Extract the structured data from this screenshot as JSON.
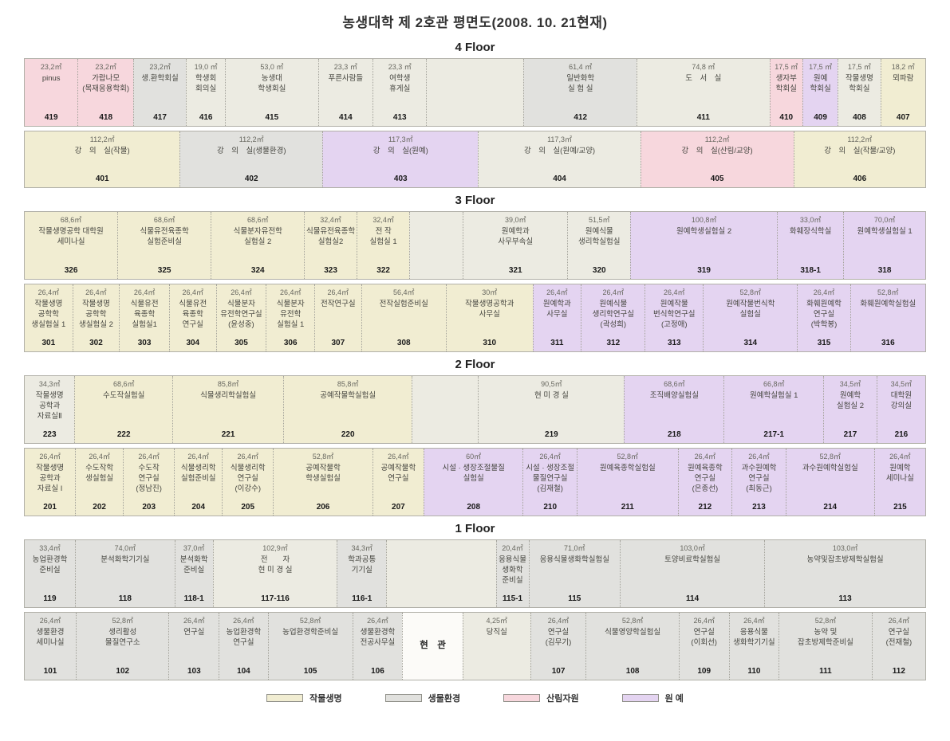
{
  "title": "농생대학 제 2호관 평면도(2008. 10. 21현재)",
  "colors": {
    "crop": "#f1edd2",
    "bio": "#e1e1de",
    "forest": "#f7d7dd",
    "horti": "#e4d4f1",
    "default": "#ecebe2"
  },
  "legend": [
    {
      "label": "작물생명",
      "type": "crop"
    },
    {
      "label": "생물환경",
      "type": "bio"
    },
    {
      "label": "산림자원",
      "type": "forest"
    },
    {
      "label": "원 예",
      "type": "horti"
    }
  ],
  "floors": [
    {
      "label": "4 Floor",
      "rows": [
        {
          "cells": [
            {
              "num": "419",
              "area": "23,2㎡",
              "name": "pinus",
              "type": "forest",
              "w": 5.9
            },
            {
              "num": "418",
              "area": "23,2㎡",
              "name": "가랍나모\n(목재응용학회)",
              "type": "forest",
              "w": 6.1
            },
            {
              "num": "417",
              "area": "23,2㎡",
              "name": "생.환학회실",
              "type": "bio",
              "w": 5.8
            },
            {
              "num": "416",
              "area": "19,0 ㎡",
              "name": "학생회\n회의실",
              "type": "none",
              "w": 4.2
            },
            {
              "num": "415",
              "area": "53,0 ㎡",
              "name": "농생대\n학생회실",
              "type": "none",
              "w": 10.4
            },
            {
              "num": "414",
              "area": "23,3 ㎡",
              "name": "푸른사람들",
              "type": "none",
              "w": 6.0
            },
            {
              "num": "413",
              "area": "23,3 ㎡",
              "name": "여학생\n휴게실",
              "type": "none",
              "w": 5.9
            },
            {
              "num": "",
              "area": "",
              "name": "",
              "type": "none",
              "w": 10.9
            },
            {
              "num": "412",
              "area": "61,4 ㎡",
              "name": "일반화학\n실 험 실",
              "type": "bio",
              "w": 12.7
            },
            {
              "num": "411",
              "area": "74,8 ㎡",
              "name": "도　서　실",
              "type": "none",
              "w": 15.0
            },
            {
              "num": "410",
              "area": "17,5 ㎡",
              "name": "생자부\n학회실",
              "type": "forest",
              "w": 3.5
            },
            {
              "num": "409",
              "area": "17,5 ㎡",
              "name": "원예\n학회실",
              "type": "horti",
              "w": 3.8
            },
            {
              "num": "408",
              "area": "17,5 ㎡",
              "name": "작물생명\n학회실",
              "type": "none",
              "w": 4.6
            },
            {
              "num": "407",
              "area": "18,2 ㎡",
              "name": "뫼파람",
              "type": "crop",
              "w": 4.9
            }
          ]
        },
        {
          "short": true,
          "cells": [
            {
              "num": "401",
              "area": "112,2㎡",
              "name": "강　의　실(작물)",
              "type": "crop",
              "w": 17.3
            },
            {
              "num": "402",
              "area": "112,2㎡",
              "name": "강　의　실(생물환경)",
              "type": "bio",
              "w": 15.8
            },
            {
              "num": "403",
              "area": "117,3㎡",
              "name": "강　의　실(원예)",
              "type": "horti",
              "w": 17.3
            },
            {
              "num": "404",
              "area": "117,3㎡",
              "name": "강　의　실(원예/교양)",
              "type": "none",
              "w": 18.0
            },
            {
              "num": "405",
              "area": "112,2㎡",
              "name": "강　의　실(산림/교양)",
              "type": "forest",
              "w": 17.0
            },
            {
              "num": "406",
              "area": "112,2㎡",
              "name": "강　의　실(작물/교양)",
              "type": "crop",
              "w": 14.6
            }
          ]
        }
      ]
    },
    {
      "label": "3 Floor",
      "rows": [
        {
          "cells": [
            {
              "num": "326",
              "area": "68,6㎡",
              "name": "작물생명공학 대학원\n세미나실",
              "type": "crop",
              "w": 10.4
            },
            {
              "num": "325",
              "area": "68,6㎡",
              "name": "식물유전육종학\n실험준비실",
              "type": "crop",
              "w": 10.4
            },
            {
              "num": "324",
              "area": "68,6㎡",
              "name": "식물분자유전학\n실험실 2",
              "type": "crop",
              "w": 10.4
            },
            {
              "num": "323",
              "area": "32,4㎡",
              "name": "식물유전육종학\n실험실2",
              "type": "crop",
              "w": 5.7
            },
            {
              "num": "322",
              "area": "32,4㎡",
              "name": "전 작\n실험실 1",
              "type": "crop",
              "w": 5.8
            },
            {
              "num": "",
              "area": "",
              "name": "",
              "type": "none",
              "w": 5.8
            },
            {
              "num": "321",
              "area": "39,0㎡",
              "name": "원예학과\n사무부속실",
              "type": "none",
              "w": 11.7
            },
            {
              "num": "320",
              "area": "51,5㎡",
              "name": "원예식물\n생리학실험실",
              "type": "none",
              "w": 6.9
            },
            {
              "num": "319",
              "area": "100,8㎡",
              "name": "원예학생실험실 2",
              "type": "horti",
              "w": 16.5
            },
            {
              "num": "318-1",
              "area": "33,0㎡",
              "name": "화훼장식학실",
              "type": "horti",
              "w": 7.3
            },
            {
              "num": "318",
              "area": "70,0㎡",
              "name": "원예학생실험실 1",
              "type": "horti",
              "w": 9.1
            }
          ]
        },
        {
          "cells": [
            {
              "num": "301",
              "area": "26,4㎡",
              "name": "작물생명\n공학학\n생실험실 1",
              "type": "crop",
              "w": 5.3
            },
            {
              "num": "302",
              "area": "26,4㎡",
              "name": "작물생명\n공학학\n생실험실 2",
              "type": "crop",
              "w": 5.1
            },
            {
              "num": "303",
              "area": "26,4㎡",
              "name": "식물유전\n육종학\n실험실1",
              "type": "crop",
              "w": 5.5
            },
            {
              "num": "304",
              "area": "26,4㎡",
              "name": "식물유전\n육종학\n연구실",
              "type": "crop",
              "w": 5.1
            },
            {
              "num": "305",
              "area": "26,4㎡",
              "name": "식물분자\n유전학연구실\n(윤성중)",
              "type": "crop",
              "w": 5.5
            },
            {
              "num": "306",
              "area": "26,4㎡",
              "name": "식물분자\n유전학\n실험실 1",
              "type": "crop",
              "w": 5.3
            },
            {
              "num": "307",
              "area": "26,4㎡",
              "name": "전작연구실",
              "type": "crop",
              "w": 5.1
            },
            {
              "num": "308",
              "area": "56,4㎡",
              "name": "전작실험준비실",
              "type": "crop",
              "w": 9.5
            },
            {
              "num": "310",
              "area": "30㎡",
              "name": "작물생명공학과\n사무실",
              "type": "crop",
              "w": 9.7
            },
            {
              "num": "311",
              "area": "26,4㎡",
              "name": "원예학과\n사무실",
              "type": "horti",
              "w": 5.3
            },
            {
              "num": "312",
              "area": "26,4㎡",
              "name": "원예식물\n생리학연구실\n(곽성희)",
              "type": "horti",
              "w": 7.1
            },
            {
              "num": "313",
              "area": "26,4㎡",
              "name": "원예작물\n번식학연구실\n(고정애)",
              "type": "horti",
              "w": 6.4
            },
            {
              "num": "314",
              "area": "52,8㎡",
              "name": "원예작물번식학\n실험실",
              "type": "horti",
              "w": 10.6
            },
            {
              "num": "315",
              "area": "26,4㎡",
              "name": "화훼원예학\n연구실\n(박학봉)",
              "type": "horti",
              "w": 5.8
            },
            {
              "num": "316",
              "area": "52,8㎡",
              "name": "화훼원예학실험실",
              "type": "horti",
              "w": 8.4
            }
          ]
        }
      ]
    },
    {
      "label": "2 Floor",
      "rows": [
        {
          "cells": [
            {
              "num": "223",
              "area": "34,3㎡",
              "name": "작물생명\n공학과\n자료실Ⅱ",
              "type": "none",
              "w": 5.5
            },
            {
              "num": "222",
              "area": "68,6㎡",
              "name": "수도작실험실",
              "type": "crop",
              "w": 10.9
            },
            {
              "num": "221",
              "area": "85,8㎡",
              "name": "식물생리학실험실",
              "type": "crop",
              "w": 12.4
            },
            {
              "num": "220",
              "area": "85,8㎡",
              "name": "공예작물학실험실",
              "type": "crop",
              "w": 14.4
            },
            {
              "num": "",
              "area": "",
              "name": "",
              "type": "none",
              "w": 7.3
            },
            {
              "num": "219",
              "area": "90,5㎡",
              "name": "현 미 경 실",
              "type": "none",
              "w": 16.4
            },
            {
              "num": "218",
              "area": "68,6㎡",
              "name": "조직배양실험실",
              "type": "horti",
              "w": 11.1
            },
            {
              "num": "217-1",
              "area": "66,8㎡",
              "name": "원예학실험실 1",
              "type": "horti",
              "w": 11.1
            },
            {
              "num": "217",
              "area": "34,5㎡",
              "name": "원예학\n실험실 2",
              "type": "horti",
              "w": 5.8
            },
            {
              "num": "216",
              "area": "34,5㎡",
              "name": "대학원\n강의실",
              "type": "horti",
              "w": 5.3
            }
          ]
        },
        {
          "cells": [
            {
              "num": "201",
              "area": "26,4㎡",
              "name": "작물생명\n공학과\n자료실 I",
              "type": "crop",
              "w": 5.5
            },
            {
              "num": "202",
              "area": "26,4㎡",
              "name": "수도작학\n생실험실",
              "type": "crop",
              "w": 5.1
            },
            {
              "num": "203",
              "area": "26,4㎡",
              "name": "수도작\n연구실\n(정남진)",
              "type": "crop",
              "w": 5.5
            },
            {
              "num": "204",
              "area": "26,4㎡",
              "name": "식물생리학\n실험준비실",
              "type": "crop",
              "w": 5.1
            },
            {
              "num": "205",
              "area": "26,4㎡",
              "name": "식물생리학\n연구실\n(이강수)",
              "type": "crop",
              "w": 5.5
            },
            {
              "num": "206",
              "area": "52,8㎡",
              "name": "공예작물학\n학생실험실",
              "type": "crop",
              "w": 10.9
            },
            {
              "num": "207",
              "area": "26,4㎡",
              "name": "공예작물학\n연구실",
              "type": "crop",
              "w": 5.5
            },
            {
              "num": "208",
              "area": "60㎡",
              "name": "시설 · 생장조절물질\n실험실",
              "type": "horti",
              "w": 10.9
            },
            {
              "num": "210",
              "area": "26,4㎡",
              "name": "시설 · 생장조절\n물질연구실\n(김재철)",
              "type": "horti",
              "w": 5.8
            },
            {
              "num": "211",
              "area": "52,8㎡",
              "name": "원예육종학실험실",
              "type": "horti",
              "w": 11.1
            },
            {
              "num": "212",
              "area": "26,4㎡",
              "name": "원예육종학\n연구실\n(은종선)",
              "type": "horti",
              "w": 5.8
            },
            {
              "num": "213",
              "area": "26,4㎡",
              "name": "과수원예학\n연구실\n(최동근)",
              "type": "horti",
              "w": 5.8
            },
            {
              "num": "214",
              "area": "52,8㎡",
              "name": "과수원예학실험실",
              "type": "horti",
              "w": 9.7
            },
            {
              "num": "215",
              "area": "26,4㎡",
              "name": "원예학\n세미나실",
              "type": "horti",
              "w": 5.5
            }
          ]
        }
      ]
    },
    {
      "label": "1 Floor",
      "rows": [
        {
          "cells": [
            {
              "num": "119",
              "area": "33,4㎡",
              "name": "농업환경학\n준비실",
              "type": "bio",
              "w": 5.3
            },
            {
              "num": "118",
              "area": "74,0㎡",
              "name": "분석화학기기실",
              "type": "bio",
              "w": 10.6
            },
            {
              "num": "118-1",
              "area": "37,0㎡",
              "name": "분석화학\n준비실",
              "type": "bio",
              "w": 3.9
            },
            {
              "num": "117-116",
              "area": "102,9㎡",
              "name": "전　　자\n현 미 경 실",
              "type": "none",
              "w": 13.3
            },
            {
              "num": "116-1",
              "area": "34,3㎡",
              "name": "학과공통\n기기실",
              "type": "bio",
              "w": 5.1
            },
            {
              "num": "",
              "area": "",
              "name": "",
              "type": "none",
              "w": 11.7
            },
            {
              "num": "115-1",
              "area": "20,4㎡",
              "name": "응용식물\n생화학\n준비실",
              "type": "bio",
              "w": 3.3
            },
            {
              "num": "115",
              "area": "71,0㎡",
              "name": "응용식물생화학실험실",
              "type": "bio",
              "w": 9.7
            },
            {
              "num": "114",
              "area": "103,0㎡",
              "name": "토양비료학실험실",
              "type": "bio",
              "w": 15.5
            },
            {
              "num": "113",
              "area": "103,0㎡",
              "name": "농약및잡초방제학실험실",
              "type": "bio",
              "w": 17.3
            }
          ]
        },
        {
          "cells": [
            {
              "num": "101",
              "area": "26,4㎡",
              "name": "생물환경\n세미나실",
              "type": "bio",
              "w": 5.3
            },
            {
              "num": "102",
              "area": "52,8㎡",
              "name": "생리활성\n물질연구소",
              "type": "bio",
              "w": 9.7
            },
            {
              "num": "103",
              "area": "26,4㎡",
              "name": "연구실",
              "type": "bio",
              "w": 5.1
            },
            {
              "num": "104",
              "area": "26,4㎡",
              "name": "농업환경학\n연구실",
              "type": "bio",
              "w": 5.0
            },
            {
              "num": "105",
              "area": "52,8㎡",
              "name": "농업환경학준비실",
              "type": "bio",
              "w": 8.8
            },
            {
              "num": "106",
              "area": "26,4㎡",
              "name": "생물환경학\n전공사무실",
              "type": "bio",
              "w": 5.1
            },
            {
              "num": "",
              "area": "",
              "name": "현　관",
              "type": "entrance",
              "w": 6.2
            },
            {
              "num": "",
              "area": "4,25㎡",
              "name": "당직실",
              "type": "none",
              "w": 7.0
            },
            {
              "num": "107",
              "area": "26,4㎡",
              "name": "연구실\n(김무기)",
              "type": "bio",
              "w": 5.7
            },
            {
              "num": "108",
              "area": "52,8㎡",
              "name": "식물영양학실험실",
              "type": "bio",
              "w": 9.7
            },
            {
              "num": "109",
              "area": "26,4㎡",
              "name": "연구실\n(이회선)",
              "type": "bio",
              "w": 5.1
            },
            {
              "num": "110",
              "area": "26,4㎡",
              "name": "응용식물\n생화학기기실",
              "type": "bio",
              "w": 5.1
            },
            {
              "num": "111",
              "area": "52,8㎡",
              "name": "농약 및\n잡초방제학준비실",
              "type": "bio",
              "w": 9.7
            },
            {
              "num": "112",
              "area": "26,4㎡",
              "name": "연구실\n(전재철)",
              "type": "bio",
              "w": 5.5
            }
          ]
        }
      ]
    }
  ]
}
